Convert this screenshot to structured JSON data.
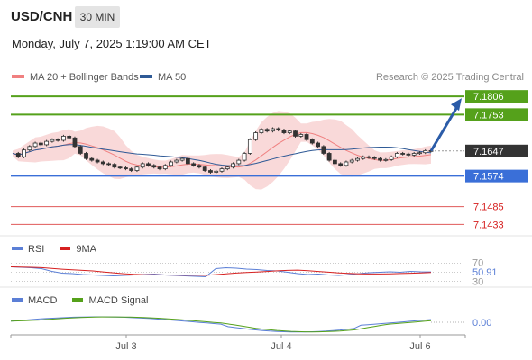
{
  "header": {
    "symbol": "USD/CNH",
    "timeframe": "30 MIN",
    "datetime": "Monday, July 7, 2025 1:19:00 AM CET"
  },
  "legend": {
    "ma20_label": "MA 20 + Bollinger Bands",
    "ma50_label": "MA 50",
    "credit": "Research © 2025 Trading Central"
  },
  "colors": {
    "ma20": "#f08080",
    "ma50": "#2f5a96",
    "bb_fill": "#f7c9c9",
    "resistance": "#55a11b",
    "pivot": "#3a6fd8",
    "support": "#e05a5a",
    "current": "#333333",
    "arrow": "#2b5ca8",
    "rsi": "#5b7fd6",
    "rsi_ma": "#d62020",
    "macd": "#5b7fd6",
    "macd_signal": "#55a11b"
  },
  "rsi_panel": {
    "label": "RSI",
    "ma_label": "9MA",
    "value": "50.91",
    "level_70": "70",
    "level_30": "30"
  },
  "macd_panel": {
    "label": "MACD",
    "signal_label": "MACD Signal",
    "value": "0.00"
  },
  "chart_data": {
    "type": "candlestick",
    "title": "USD/CNH",
    "timeframe": "30 MIN",
    "x_ticks": [
      "Jul 3",
      "Jul 4",
      "Jul 6"
    ],
    "ylim": [
      7.14,
      7.183
    ],
    "levels": [
      {
        "value": 7.1806,
        "kind": "resistance",
        "label": "7.1806"
      },
      {
        "value": 7.1753,
        "kind": "resistance",
        "label": "7.1753"
      },
      {
        "value": 7.1647,
        "kind": "current",
        "label": "7.1647"
      },
      {
        "value": 7.1574,
        "kind": "pivot",
        "label": "7.1574"
      },
      {
        "value": 7.1485,
        "kind": "support",
        "label": "7.1485"
      },
      {
        "value": 7.1433,
        "kind": "support",
        "label": "7.1433"
      }
    ],
    "price_series": [
      7.164,
      7.163,
      7.165,
      7.166,
      7.167,
      7.1665,
      7.1675,
      7.168,
      7.1678,
      7.169,
      7.1685,
      7.166,
      7.164,
      7.1625,
      7.162,
      7.1615,
      7.161,
      7.1608,
      7.16,
      7.1598,
      7.1595,
      7.159,
      7.16,
      7.161,
      7.1605,
      7.16,
      7.1595,
      7.1605,
      7.1615,
      7.162,
      7.1625,
      7.161,
      7.1605,
      7.16,
      7.159,
      7.1585,
      7.1588,
      7.1595,
      7.16,
      7.161,
      7.162,
      7.164,
      7.168,
      7.17,
      7.171,
      7.1705,
      7.1712,
      7.1708,
      7.17,
      7.1705,
      7.169,
      7.1695,
      7.168,
      7.167,
      7.166,
      7.164,
      7.162,
      7.161,
      7.1605,
      7.1615,
      7.162,
      7.1625,
      7.163,
      7.1628,
      7.1625,
      7.162,
      7.1622,
      7.163,
      7.164,
      7.1638,
      7.1635,
      7.164,
      7.1642,
      7.1648,
      7.1647
    ],
    "rsi": {
      "value": 50.91,
      "levels": [
        70,
        30
      ],
      "series": [
        62,
        61,
        60,
        58,
        52,
        48,
        47,
        45,
        44,
        43,
        42,
        43,
        44,
        45,
        46,
        44,
        43,
        42,
        41,
        40,
        58,
        60,
        59,
        57,
        56,
        54,
        53,
        50,
        47,
        45,
        46,
        44,
        43,
        45,
        47,
        49,
        50,
        51,
        50,
        52,
        51,
        50.9
      ]
    },
    "macd": {
      "value": 0.0
    }
  }
}
